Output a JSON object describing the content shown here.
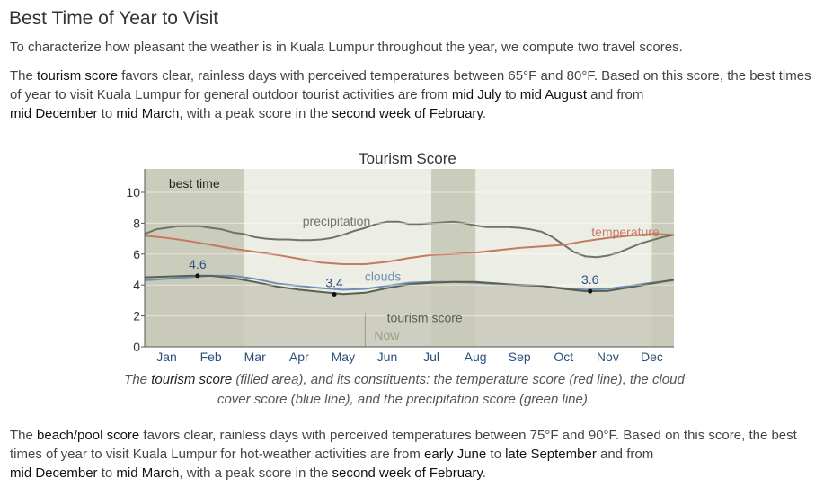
{
  "page": {
    "title": "Best Time of Year to Visit",
    "intro": "To characterize how pleasant the weather is in Kuala Lumpur throughout the year, we compute two travel scores.",
    "tourism_paragraph": {
      "t1": "The ",
      "e1": "tourism score",
      "t2": " favors clear, rainless days with perceived temperatures between 65°F and 80°F. Based on this score, the best times of year to visit Kuala Lumpur for general outdoor tourist activities are from ",
      "e2": "mid July",
      "t3": " to ",
      "e3": "mid August",
      "t4": " and from ",
      "e4": "mid December",
      "t5": " to ",
      "e5": "mid March",
      "t6": ", with a peak score in the ",
      "e6": "second week of February",
      "t7": "."
    },
    "caption": {
      "t1": "The ",
      "e1": "tourism score",
      "t2": " (filled area), and its constituents: the temperature score (red line), the cloud cover score (blue line), and the precipitation score (green line)."
    },
    "beach_paragraph": {
      "t1": "The ",
      "e1": "beach/pool score",
      "t2": " favors clear, rainless days with perceived temperatures between 75°F and 90°F. Based on this score, the best times of year to visit Kuala Lumpur for hot-weather activities are from ",
      "e2": "early June",
      "t3": " to ",
      "e3": "late September",
      "t4": " and from ",
      "e4": "mid December",
      "t5": " to ",
      "e5": "mid March",
      "t6": ", with a peak score in the ",
      "e6": "second week of February",
      "t7": "."
    }
  },
  "chart_data": {
    "type": "area",
    "title": "Tourism Score",
    "x_unit": "month",
    "xlim": [
      0,
      12
    ],
    "ylim": [
      0,
      10
    ],
    "yticks": [
      0,
      2,
      4,
      6,
      8,
      10
    ],
    "months": [
      "Jan",
      "Feb",
      "Mar",
      "Apr",
      "May",
      "Jun",
      "Jul",
      "Aug",
      "Sep",
      "Oct",
      "Nov",
      "Dec"
    ],
    "best_time_label": "best time",
    "best_time_periods": [
      [
        0,
        2.25
      ],
      [
        6.5,
        7.5
      ],
      [
        11.5,
        12
      ]
    ],
    "now_label": "Now",
    "now_x": 5.0,
    "colors": {
      "area": "#c9c9b8",
      "best_band": "#a5a58a",
      "temperature": "#c47a5f",
      "clouds": "#6f90b3",
      "precipitation": "#6e7563",
      "tourism": "#5a6050",
      "annotation": "#2f4f7f"
    },
    "series": [
      {
        "name": "precipitation",
        "label_at": [
          4.35,
          8.15
        ],
        "x": [
          0,
          0.25,
          0.5,
          0.75,
          1,
          1.25,
          1.5,
          1.75,
          2,
          2.25,
          2.5,
          2.75,
          3,
          3.25,
          3.5,
          3.75,
          4,
          4.25,
          4.5,
          4.75,
          5,
          5.25,
          5.5,
          5.75,
          6,
          6.25,
          6.5,
          6.75,
          7,
          7.25,
          7.5,
          7.75,
          8,
          8.25,
          8.5,
          8.75,
          9,
          9.25,
          9.5,
          9.75,
          10,
          10.25,
          10.5,
          10.75,
          11,
          11.25,
          11.5,
          11.75,
          12
        ],
        "values": [
          7.3,
          7.6,
          7.7,
          7.8,
          7.8,
          7.8,
          7.7,
          7.6,
          7.4,
          7.3,
          7.1,
          7.0,
          6.95,
          6.95,
          6.9,
          6.9,
          6.95,
          7.05,
          7.25,
          7.5,
          7.7,
          7.95,
          8.1,
          8.1,
          7.95,
          7.95,
          8.0,
          8.05,
          8.1,
          8.0,
          7.85,
          7.75,
          7.75,
          7.75,
          7.7,
          7.6,
          7.45,
          7.1,
          6.6,
          6.1,
          5.85,
          5.8,
          5.9,
          6.1,
          6.4,
          6.7,
          6.9,
          7.1,
          7.25
        ]
      },
      {
        "name": "temperature",
        "label_at": [
          10.9,
          7.45
        ],
        "x": [
          0,
          0.5,
          1,
          1.5,
          2,
          2.5,
          3,
          3.5,
          4,
          4.5,
          5,
          5.5,
          6,
          6.5,
          7,
          7.5,
          8,
          8.5,
          9,
          9.5,
          10,
          10.5,
          11,
          11.5,
          12
        ],
        "values": [
          7.2,
          7.05,
          6.85,
          6.6,
          6.35,
          6.15,
          5.95,
          5.7,
          5.45,
          5.35,
          5.35,
          5.5,
          5.75,
          5.95,
          6.0,
          6.1,
          6.25,
          6.4,
          6.5,
          6.6,
          6.85,
          7.05,
          7.2,
          7.3,
          7.25
        ]
      },
      {
        "name": "clouds",
        "label_at": [
          5.4,
          4.55
        ],
        "x": [
          0,
          0.5,
          1,
          1.5,
          2,
          2.5,
          3,
          3.5,
          4,
          4.5,
          5,
          5.5,
          6,
          6.5,
          7,
          7.5,
          8,
          8.5,
          9,
          9.5,
          10,
          10.5,
          11,
          11.5,
          12
        ],
        "values": [
          4.3,
          4.4,
          4.5,
          4.6,
          4.6,
          4.4,
          4.1,
          3.95,
          3.8,
          3.7,
          3.75,
          3.95,
          4.15,
          4.2,
          4.2,
          4.15,
          4.05,
          4.0,
          3.95,
          3.8,
          3.7,
          3.75,
          3.95,
          4.15,
          4.3
        ]
      },
      {
        "name": "tourism score",
        "label_at": [
          6.35,
          1.9
        ],
        "x": [
          0,
          0.5,
          1,
          1.5,
          2,
          2.5,
          3,
          3.5,
          4,
          4.5,
          5,
          5.5,
          6,
          6.5,
          7,
          7.5,
          8,
          8.5,
          9,
          9.5,
          10,
          10.5,
          11,
          11.5,
          12
        ],
        "values": [
          4.5,
          4.55,
          4.6,
          4.6,
          4.45,
          4.2,
          3.9,
          3.7,
          3.55,
          3.42,
          3.5,
          3.8,
          4.05,
          4.15,
          4.2,
          4.2,
          4.1,
          4.0,
          3.95,
          3.75,
          3.6,
          3.62,
          3.85,
          4.1,
          4.35
        ]
      }
    ],
    "annotations": [
      {
        "text": "4.6",
        "x": 1.2,
        "y": 4.6
      },
      {
        "text": "3.4",
        "x": 4.3,
        "y": 3.4
      },
      {
        "text": "3.6",
        "x": 10.1,
        "y": 3.6
      }
    ]
  }
}
